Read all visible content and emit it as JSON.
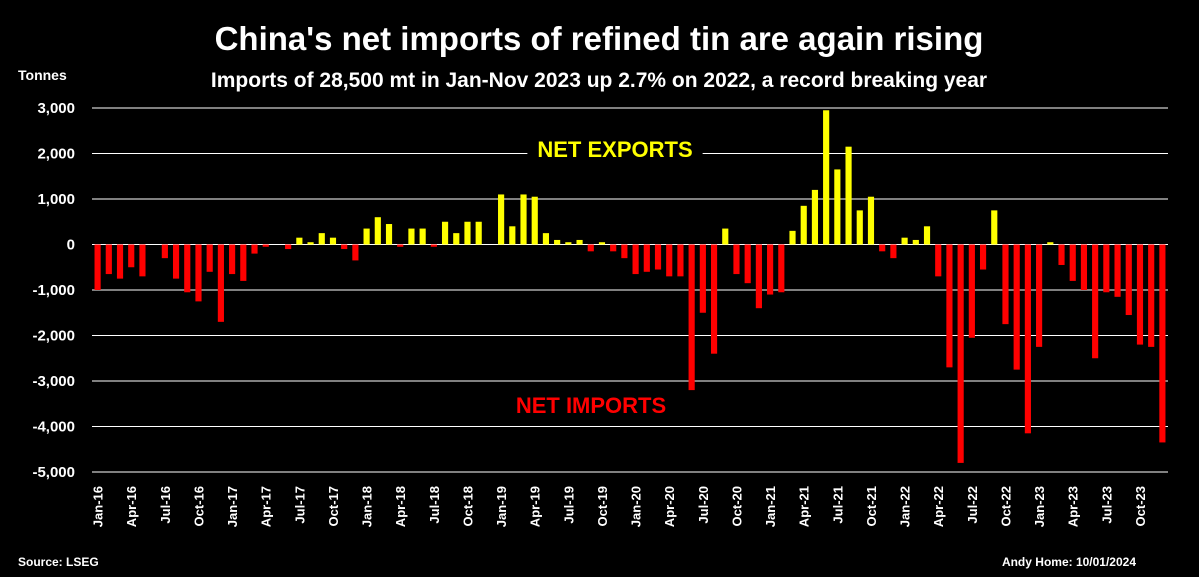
{
  "chart_data": {
    "type": "bar",
    "title": "China's net imports of refined tin are again rising",
    "subtitle": "Imports of 28,500 mt in Jan-Nov 2023 up 2.7% on 2022, a record breaking year",
    "ylabel": "Tonnes",
    "ylim": [
      -5000,
      3000
    ],
    "yticks": [
      3000,
      2000,
      1000,
      0,
      -1000,
      -2000,
      -3000,
      -4000,
      -5000
    ],
    "ytick_labels": [
      "3,000",
      "2,000",
      "1,000",
      "0",
      "-1,000",
      "-2,000",
      "-3,000",
      "-4,000",
      "-5,000"
    ],
    "grid": true,
    "x_tick_labels": [
      "Jan-16",
      "Apr-16",
      "Jul-16",
      "Oct-16",
      "Jan-17",
      "Apr-17",
      "Jul-17",
      "Oct-17",
      "Jan-18",
      "Apr-18",
      "Jul-18",
      "Oct-18",
      "Jan-19",
      "Apr-19",
      "Jul-19",
      "Oct-19",
      "Jan-20",
      "Apr-20",
      "Jul-20",
      "Oct-20",
      "Jan-21",
      "Apr-21",
      "Jul-21",
      "Oct-21",
      "Jan-22",
      "Apr-22",
      "Jul-22",
      "Oct-22",
      "Jan-23",
      "Apr-23",
      "Jul-23",
      "Oct-23"
    ],
    "x_tick_every": 3,
    "series": [
      {
        "values": [
          -1000,
          -650,
          -750,
          -500,
          -700,
          0,
          -300,
          -750,
          -1050,
          -1250,
          -600,
          -1700,
          -650,
          -800,
          -200,
          -50,
          0,
          -100,
          150,
          50,
          250,
          150,
          -100,
          -350,
          350,
          600,
          450,
          -50,
          350,
          350,
          -50,
          500,
          250,
          500,
          500,
          0,
          1100,
          400,
          1100,
          1050,
          250,
          100,
          50,
          100,
          -150,
          50,
          -150,
          -300,
          -650,
          -600,
          -550,
          -700,
          -700,
          -3200,
          -1500,
          -2400,
          350,
          -650,
          -850,
          -1400,
          -1100,
          -1050,
          300,
          850,
          1200,
          2950,
          1650,
          2150,
          750,
          1050,
          -150,
          -300,
          150,
          100,
          400,
          -700,
          -2700,
          -4800,
          -2050,
          -550,
          750,
          -1750,
          -2750,
          -4150,
          -2250,
          50,
          -450,
          -800,
          -1000,
          -2500,
          -1050,
          -1150,
          -1550,
          -2200,
          -2250,
          -4350
        ]
      }
    ],
    "annotations": [
      {
        "text": "NET EXPORTS",
        "color": "#FFFF00"
      },
      {
        "text": "NET IMPORTS",
        "color": "#FF0000"
      }
    ],
    "colors": {
      "positive": "#FFFF00",
      "negative": "#FF0000",
      "background": "#000000",
      "text": "#FFFFFF",
      "grid": "#FFFFFF"
    }
  },
  "footer": {
    "source": "Source: LSEG",
    "credit": "Andy Home: 10/01/2024"
  }
}
